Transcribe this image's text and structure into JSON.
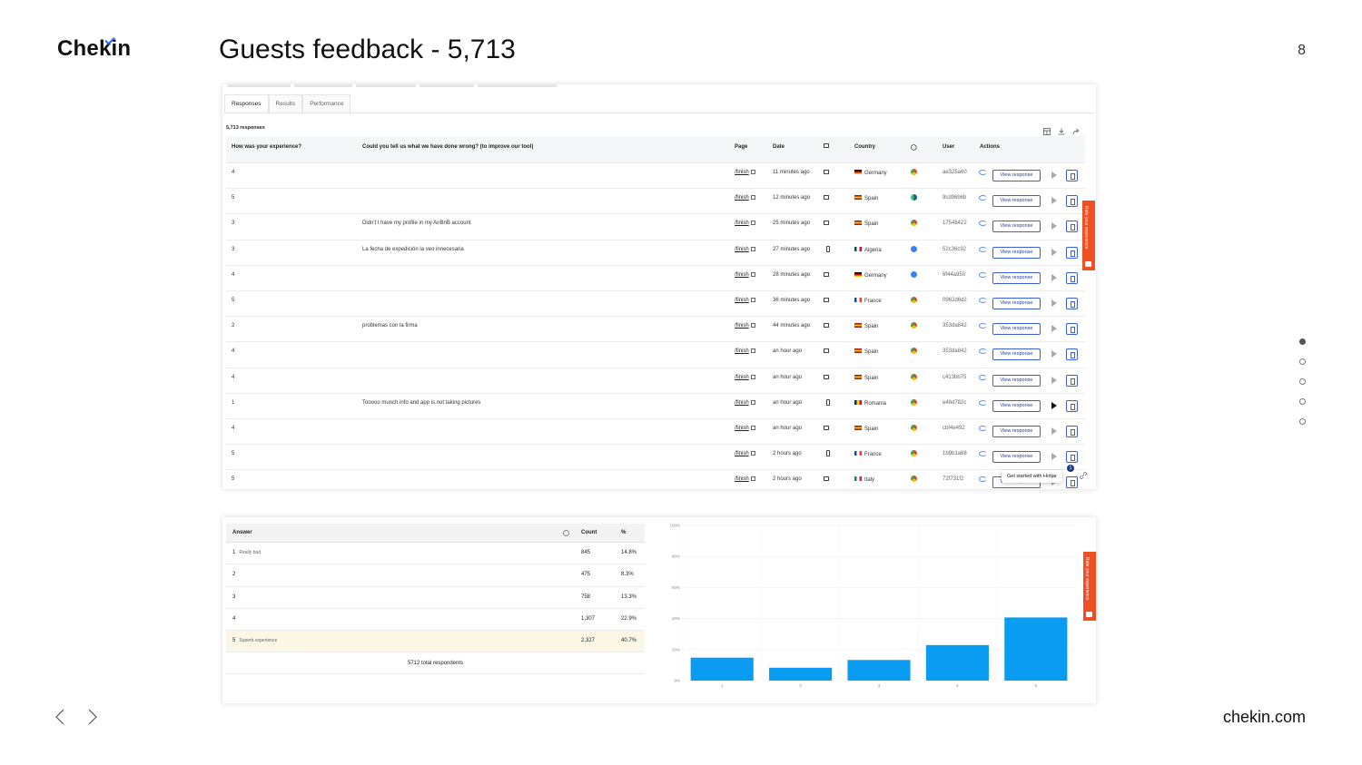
{
  "brand": {
    "name": "Chekin",
    "url": "chekin.com"
  },
  "slide": {
    "title": "Guests feedback - 5,713",
    "page_number": "8",
    "nav_dots": 5,
    "active_dot": 0
  },
  "responses_panel": {
    "tabs": [
      "Responses",
      "Results",
      "Performance"
    ],
    "active_tab": "Responses",
    "count_label": "5,713 responses",
    "columns": {
      "experience": "How was your experience?",
      "wrong": "Could you tell us what we have done wrong? (to improve our tool)",
      "page": "Page",
      "date": "Date",
      "country": "Country",
      "user": "User",
      "actions": "Actions"
    },
    "view_button_label": "View response",
    "rows": [
      {
        "rating": "4",
        "comment": "",
        "page": "/finish",
        "date": "11 minutes ago",
        "device": "desktop",
        "country": "Germany",
        "flag": "de",
        "browser": "chrome",
        "user": "ae325a60"
      },
      {
        "rating": "5",
        "comment": "",
        "page": "/finish",
        "date": "12 minutes ago",
        "device": "desktop",
        "country": "Spain",
        "flag": "es",
        "browser": "edge",
        "user": "9cd96b6b"
      },
      {
        "rating": "3",
        "comment": "Didn't I have my profile in my AirBnB account",
        "page": "/finish",
        "date": "25 minutes ago",
        "device": "desktop",
        "country": "Spain",
        "flag": "es",
        "browser": "chrome",
        "user": "17548422"
      },
      {
        "rating": "3",
        "comment": "La fecha de expedición la veo innecesaria",
        "page": "/finish",
        "date": "27 minutes ago",
        "device": "mobile",
        "country": "Algeria",
        "flag": "dz",
        "browser": "other",
        "user": "52c36c92"
      },
      {
        "rating": "4",
        "comment": "",
        "page": "/finish",
        "date": "28 minutes ago",
        "device": "desktop",
        "country": "Germany",
        "flag": "de",
        "browser": "other",
        "user": "6f44a950"
      },
      {
        "rating": "5",
        "comment": "",
        "page": "/finish",
        "date": "36 minutes ago",
        "device": "desktop",
        "country": "France",
        "flag": "fr",
        "browser": "chrome",
        "user": "0962d6d2"
      },
      {
        "rating": "2",
        "comment": "problemas con la firma",
        "page": "/finish",
        "date": "44 minutes ago",
        "device": "desktop",
        "country": "Spain",
        "flag": "es",
        "browser": "chrome",
        "user": "353da842"
      },
      {
        "rating": "4",
        "comment": "",
        "page": "/finish",
        "date": "an hour ago",
        "device": "desktop",
        "country": "Spain",
        "flag": "es",
        "browser": "chrome",
        "user": "353da842"
      },
      {
        "rating": "4",
        "comment": "",
        "page": "/finish",
        "date": "an hour ago",
        "device": "desktop",
        "country": "Spain",
        "flag": "es",
        "browser": "chrome",
        "user": "c413bb75"
      },
      {
        "rating": "1",
        "comment": "Tooooo munch info and app is not taking pictures",
        "page": "/finish",
        "date": "an hour ago",
        "device": "mobile",
        "country": "Romania",
        "flag": "ro",
        "browser": "chrome",
        "user": "e48d782c"
      },
      {
        "rating": "4",
        "comment": "",
        "page": "/finish",
        "date": "an hour ago",
        "device": "desktop",
        "country": "Spain",
        "flag": "es",
        "browser": "chrome",
        "user": "cbf4e492"
      },
      {
        "rating": "5",
        "comment": "",
        "page": "/finish",
        "date": "2 hours ago",
        "device": "mobile",
        "country": "France",
        "flag": "fr",
        "browser": "chrome",
        "user": "1b9b1a68"
      },
      {
        "rating": "5",
        "comment": "",
        "page": "/finish",
        "date": "2 hours ago",
        "device": "desktop",
        "country": "Italy",
        "flag": "it",
        "browser": "chrome",
        "user": "72f731f2"
      }
    ],
    "feedback_tab_label": "Rate your experience",
    "hotjar_popup": "Get started with Hotjar",
    "hotjar_badge": "1"
  },
  "results_panel": {
    "columns": {
      "answer": "Answer",
      "count": "Count",
      "percent": "%"
    },
    "rows": [
      {
        "answer": "1",
        "label": "Really bad",
        "count": "845",
        "percent": "14.8%"
      },
      {
        "answer": "2",
        "label": "",
        "count": "475",
        "percent": "8.3%"
      },
      {
        "answer": "3",
        "label": "",
        "count": "758",
        "percent": "13.3%"
      },
      {
        "answer": "4",
        "label": "",
        "count": "1,307",
        "percent": "22.9%"
      },
      {
        "answer": "5",
        "label": "Superb experience",
        "count": "2,327",
        "percent": "40.7%"
      }
    ],
    "total_label": "5712 total respondents",
    "feedback_tab_label": "Rate your experience"
  },
  "chart_data": {
    "type": "bar",
    "categories": [
      "1",
      "2",
      "3",
      "4",
      "5"
    ],
    "values": [
      14.8,
      8.3,
      13.3,
      22.9,
      40.7
    ],
    "yticks": [
      "0%",
      "20%",
      "40%",
      "60%",
      "80%",
      "100%"
    ],
    "ylim": [
      0,
      100
    ],
    "bar_color": "#0a9cf0",
    "grid": true
  },
  "colors": {
    "accent": "#2563eb",
    "feedback": "#f04e23",
    "highlight_row": "#fbf7e4"
  }
}
